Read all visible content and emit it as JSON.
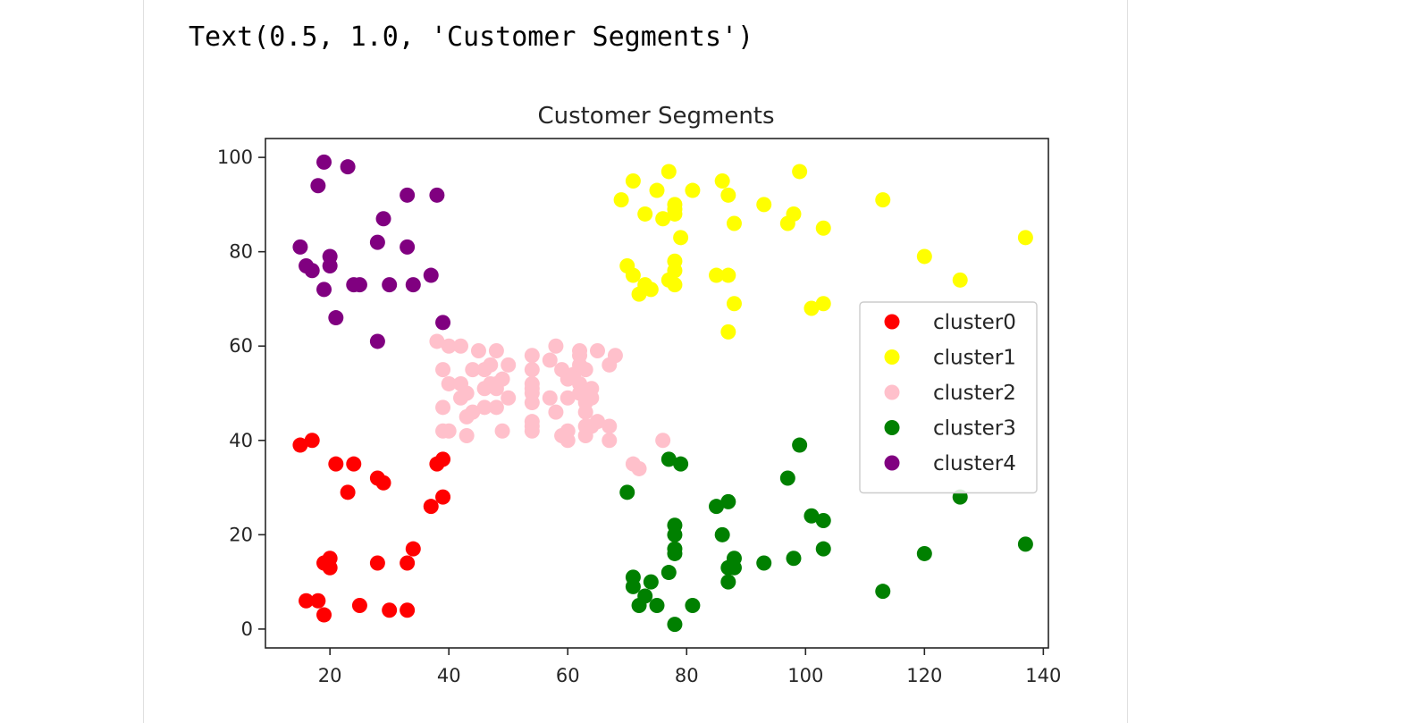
{
  "output_text": "Text(0.5, 1.0, 'Customer Segments')",
  "chart_data": {
    "type": "scatter",
    "title": "Customer Segments",
    "xlabel": "",
    "ylabel": "",
    "xlim": [
      9.15,
      140.85
    ],
    "ylim": [
      -4.0,
      104.0
    ],
    "xticks": [
      20,
      40,
      60,
      80,
      100,
      120,
      140
    ],
    "yticks": [
      0,
      20,
      40,
      60,
      80,
      100
    ],
    "legend_position": "center-right",
    "grid": false,
    "series": [
      {
        "name": "cluster0",
        "color": "#ff0000",
        "points": [
          [
            15,
            39
          ],
          [
            16,
            6
          ],
          [
            17,
            40
          ],
          [
            18,
            6
          ],
          [
            19,
            3
          ],
          [
            19,
            14
          ],
          [
            20,
            15
          ],
          [
            20,
            13
          ],
          [
            21,
            35
          ],
          [
            23,
            29
          ],
          [
            24,
            35
          ],
          [
            25,
            5
          ],
          [
            28,
            14
          ],
          [
            28,
            32
          ],
          [
            29,
            31
          ],
          [
            30,
            4
          ],
          [
            33,
            4
          ],
          [
            33,
            14
          ],
          [
            34,
            17
          ],
          [
            37,
            26
          ],
          [
            38,
            35
          ],
          [
            39,
            36
          ],
          [
            39,
            28
          ]
        ]
      },
      {
        "name": "cluster1",
        "color": "#ffff00",
        "points": [
          [
            69,
            91
          ],
          [
            70,
            77
          ],
          [
            71,
            95
          ],
          [
            71,
            75
          ],
          [
            72,
            71
          ],
          [
            73,
            88
          ],
          [
            73,
            73
          ],
          [
            74,
            72
          ],
          [
            75,
            93
          ],
          [
            76,
            87
          ],
          [
            77,
            97
          ],
          [
            77,
            74
          ],
          [
            78,
            90
          ],
          [
            78,
            88
          ],
          [
            78,
            76
          ],
          [
            78,
            89
          ],
          [
            78,
            78
          ],
          [
            78,
            73
          ],
          [
            79,
            83
          ],
          [
            81,
            93
          ],
          [
            85,
            75
          ],
          [
            86,
            95
          ],
          [
            87,
            63
          ],
          [
            87,
            75
          ],
          [
            87,
            92
          ],
          [
            88,
            86
          ],
          [
            88,
            69
          ],
          [
            93,
            90
          ],
          [
            97,
            86
          ],
          [
            98,
            88
          ],
          [
            99,
            97
          ],
          [
            101,
            68
          ],
          [
            103,
            85
          ],
          [
            103,
            69
          ],
          [
            113,
            91
          ],
          [
            120,
            79
          ],
          [
            126,
            74
          ],
          [
            137,
            83
          ]
        ]
      },
      {
        "name": "cluster2",
        "color": "#ffc0cb",
        "points": [
          [
            38,
            61
          ],
          [
            39,
            55
          ],
          [
            39,
            47
          ],
          [
            39,
            42
          ],
          [
            40,
            42
          ],
          [
            40,
            52
          ],
          [
            40,
            60
          ],
          [
            42,
            60
          ],
          [
            42,
            52
          ],
          [
            42,
            49
          ],
          [
            43,
            41
          ],
          [
            43,
            45
          ],
          [
            43,
            50
          ],
          [
            44,
            46
          ],
          [
            44,
            55
          ],
          [
            45,
            59
          ],
          [
            46,
            51
          ],
          [
            46,
            47
          ],
          [
            46,
            55
          ],
          [
            47,
            56
          ],
          [
            47,
            52
          ],
          [
            48,
            52
          ],
          [
            48,
            59
          ],
          [
            48,
            51
          ],
          [
            48,
            47
          ],
          [
            49,
            42
          ],
          [
            49,
            53
          ],
          [
            50,
            49
          ],
          [
            50,
            56
          ],
          [
            54,
            52
          ],
          [
            54,
            58
          ],
          [
            54,
            43
          ],
          [
            54,
            48
          ],
          [
            54,
            50
          ],
          [
            54,
            51
          ],
          [
            54,
            42
          ],
          [
            54,
            55
          ],
          [
            54,
            44
          ],
          [
            57,
            57
          ],
          [
            57,
            49
          ],
          [
            58,
            60
          ],
          [
            58,
            46
          ],
          [
            59,
            55
          ],
          [
            59,
            41
          ],
          [
            60,
            53
          ],
          [
            60,
            49
          ],
          [
            60,
            40
          ],
          [
            60,
            42
          ],
          [
            61,
            54
          ],
          [
            62,
            52
          ],
          [
            62,
            59
          ],
          [
            62,
            58
          ],
          [
            62,
            50
          ],
          [
            62,
            56
          ],
          [
            63,
            48
          ],
          [
            63,
            46
          ],
          [
            63,
            41
          ],
          [
            63,
            43
          ],
          [
            63,
            55
          ],
          [
            64,
            43
          ],
          [
            64,
            49
          ],
          [
            64,
            51
          ],
          [
            65,
            59
          ],
          [
            65,
            44
          ],
          [
            67,
            56
          ],
          [
            67,
            40
          ],
          [
            67,
            43
          ],
          [
            68,
            58
          ],
          [
            71,
            35
          ],
          [
            72,
            34
          ],
          [
            76,
            40
          ]
        ]
      },
      {
        "name": "cluster3",
        "color": "#008000",
        "points": [
          [
            70,
            29
          ],
          [
            71,
            11
          ],
          [
            71,
            9
          ],
          [
            72,
            5
          ],
          [
            73,
            7
          ],
          [
            74,
            10
          ],
          [
            75,
            5
          ],
          [
            77,
            12
          ],
          [
            77,
            36
          ],
          [
            78,
            22
          ],
          [
            78,
            17
          ],
          [
            78,
            20
          ],
          [
            78,
            16
          ],
          [
            78,
            1
          ],
          [
            79,
            35
          ],
          [
            81,
            5
          ],
          [
            85,
            26
          ],
          [
            86,
            20
          ],
          [
            87,
            27
          ],
          [
            87,
            13
          ],
          [
            87,
            10
          ],
          [
            88,
            13
          ],
          [
            88,
            15
          ],
          [
            93,
            14
          ],
          [
            97,
            32
          ],
          [
            98,
            15
          ],
          [
            99,
            39
          ],
          [
            101,
            24
          ],
          [
            103,
            17
          ],
          [
            103,
            23
          ],
          [
            113,
            8
          ],
          [
            120,
            16
          ],
          [
            126,
            28
          ],
          [
            137,
            18
          ]
        ]
      },
      {
        "name": "cluster4",
        "color": "#800080",
        "points": [
          [
            15,
            81
          ],
          [
            16,
            77
          ],
          [
            17,
            76
          ],
          [
            18,
            94
          ],
          [
            19,
            72
          ],
          [
            19,
            99
          ],
          [
            20,
            77
          ],
          [
            20,
            79
          ],
          [
            21,
            66
          ],
          [
            23,
            98
          ],
          [
            24,
            73
          ],
          [
            25,
            73
          ],
          [
            28,
            82
          ],
          [
            28,
            61
          ],
          [
            29,
            87
          ],
          [
            30,
            73
          ],
          [
            33,
            92
          ],
          [
            33,
            81
          ],
          [
            34,
            73
          ],
          [
            37,
            75
          ],
          [
            38,
            92
          ],
          [
            39,
            65
          ]
        ]
      }
    ]
  }
}
